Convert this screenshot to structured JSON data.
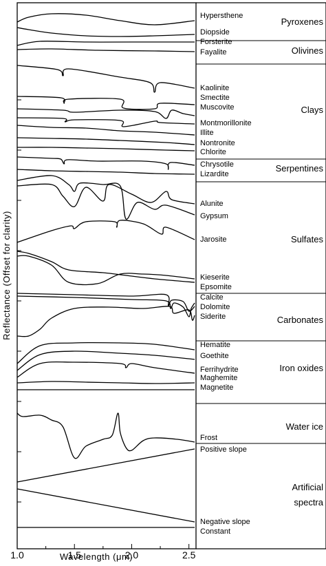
{
  "chart_data": {
    "type": "line",
    "title": "",
    "xlabel": "Wavelength (μm)",
    "ylabel": "Reflectance (Offset for clarity)",
    "xlim": [
      1.0,
      2.55
    ],
    "xticks": [
      "1.0",
      "1.5",
      "2.0",
      "2.5"
    ],
    "grid": false,
    "legend": "none",
    "groups": [
      {
        "name": "Pyroxenes",
        "minerals": [
          "Hypersthene",
          "Diopside"
        ]
      },
      {
        "name": "Olivines",
        "minerals": [
          "Forsterite",
          "Fayalite"
        ]
      },
      {
        "name": "Clays",
        "minerals": [
          "Kaolinite",
          "Smectite",
          "Muscovite",
          "Montmorillonite",
          "Illite",
          "Nontronite",
          "Chlorite"
        ]
      },
      {
        "name": "Serpentines",
        "minerals": [
          "Chrysotile",
          "Lizardite"
        ]
      },
      {
        "name": "Sulfates",
        "minerals": [
          "Alunite",
          "Gypsum",
          "Jarosite",
          "Kieserite",
          "Epsomite"
        ]
      },
      {
        "name": "Carbonates",
        "minerals": [
          "Calcite",
          "Dolomite",
          "Siderite"
        ]
      },
      {
        "name": "Iron oxides",
        "minerals": [
          "Hematite",
          "Goethite",
          "Ferrihydrite",
          "Maghemite",
          "Magnetite"
        ]
      },
      {
        "name": "Water ice",
        "minerals": [
          "Frost"
        ]
      },
      {
        "name": "Artificial spectra",
        "minerals": [
          "Positive slope",
          "Negative slope",
          "Constant"
        ]
      }
    ],
    "series": [
      {
        "name": "Hypersthene",
        "x": [
          1.0,
          1.1,
          1.3,
          1.6,
          1.9,
          2.2,
          2.55
        ],
        "y": [
          -32,
          -25,
          -20,
          -22,
          -30,
          -36,
          -30
        ]
      },
      {
        "name": "Diopside",
        "x": [
          1.0,
          1.1,
          1.3,
          1.6,
          1.9,
          2.2,
          2.55
        ],
        "y": [
          -40,
          -43,
          -48,
          -52,
          -53,
          -52,
          -50
        ]
      },
      {
        "name": "Forsterite",
        "x": [
          1.0,
          1.2,
          1.6,
          2.0,
          2.55
        ],
        "y": [
          -66,
          -60,
          -61,
          -61,
          -61
        ]
      },
      {
        "name": "Fayalite",
        "x": [
          1.0,
          1.3,
          1.7,
          2.2,
          2.55
        ],
        "y": [
          -72,
          -71,
          -73,
          -74,
          -75
        ]
      },
      {
        "name": "Kaolinite",
        "x": [
          1.0,
          1.35,
          1.4,
          1.45,
          1.9,
          2.16,
          2.2,
          2.25,
          2.55
        ],
        "y": [
          -95,
          -101,
          -110,
          -100,
          -112,
          -120,
          -134,
          -120,
          -128
        ]
      },
      {
        "name": "Smectite",
        "x": [
          1.0,
          1.38,
          1.41,
          1.45,
          1.9,
          1.93,
          2.2,
          2.25,
          2.55
        ],
        "y": [
          -140,
          -142,
          -150,
          -144,
          -144,
          -157,
          -158,
          -150,
          -152
        ]
      },
      {
        "name": "Muscovite",
        "x": [
          1.0,
          1.4,
          1.5,
          1.9,
          2.2,
          2.3,
          2.35,
          2.45,
          2.55
        ],
        "y": [
          -158,
          -160,
          -163,
          -160,
          -162,
          -172,
          -160,
          -165,
          -168
        ]
      },
      {
        "name": "Montmorillonite",
        "x": [
          1.0,
          1.4,
          1.42,
          1.5,
          1.9,
          1.93,
          2.2,
          2.25,
          2.55
        ],
        "y": [
          -171,
          -172,
          -177,
          -174,
          -175,
          -184,
          -176,
          -178,
          -180
        ]
      },
      {
        "name": "Illite",
        "x": [
          1.0,
          1.3,
          1.6,
          1.9,
          2.2,
          2.55
        ],
        "y": [
          -182,
          -185,
          -186,
          -190,
          -192,
          -196
        ]
      },
      {
        "name": "Nontronite",
        "x": [
          1.0,
          1.3,
          1.6,
          1.9,
          2.3,
          2.55
        ],
        "y": [
          -200,
          -201,
          -202,
          -204,
          -207,
          -210
        ]
      },
      {
        "name": "Chlorite",
        "x": [
          1.0,
          1.3,
          1.6,
          1.9,
          2.3,
          2.55
        ],
        "y": [
          -214,
          -214,
          -215,
          -216,
          -218,
          -219
        ]
      },
      {
        "name": "Chrysotile",
        "x": [
          1.0,
          1.3,
          1.38,
          1.41,
          1.44,
          1.7,
          2.1,
          2.3,
          2.32,
          2.34,
          2.55
        ],
        "y": [
          -228,
          -230,
          -231,
          -238,
          -232,
          -234,
          -234,
          -238,
          -246,
          -236,
          -240
        ]
      },
      {
        "name": "Lizardite",
        "x": [
          1.0,
          1.3,
          1.6,
          1.9,
          2.2,
          2.55
        ],
        "y": [
          -246,
          -248,
          -249,
          -250,
          -252,
          -253
        ]
      },
      {
        "name": "Alunite",
        "x": [
          1.0,
          1.3,
          1.4,
          1.5,
          1.6,
          1.75,
          1.8,
          2.0,
          2.17,
          2.3,
          2.35,
          2.55
        ],
        "y": [
          -270,
          -268,
          -285,
          -300,
          -272,
          -292,
          -268,
          -282,
          -294,
          -278,
          -290,
          -296
        ]
      },
      {
        "name": "Gypsum",
        "x": [
          1.0,
          1.3,
          1.45,
          1.5,
          1.55,
          1.75,
          1.9,
          1.95,
          2.05,
          2.2,
          2.3,
          2.55
        ],
        "y": [
          -262,
          -255,
          -268,
          -278,
          -266,
          -268,
          -270,
          -318,
          -294,
          -304,
          -298,
          -312
        ]
      },
      {
        "name": "Jarosite",
        "x": [
          1.0,
          1.3,
          1.47,
          1.5,
          1.6,
          1.85,
          1.87,
          1.9,
          2.1,
          2.26,
          2.3,
          2.55
        ],
        "y": [
          -352,
          -335,
          -328,
          -332,
          -322,
          -322,
          -330,
          -320,
          -325,
          -340,
          -330,
          -348
        ]
      },
      {
        "name": "Kieserite",
        "x": [
          1.0,
          1.1,
          1.3,
          1.45,
          1.7,
          1.9,
          2.1,
          2.3,
          2.55
        ],
        "y": [
          -372,
          -372,
          -385,
          -410,
          -412,
          -398,
          -398,
          -400,
          -405
        ]
      },
      {
        "name": "Epsomite",
        "x": [
          1.0,
          1.1,
          1.3,
          1.45,
          1.75,
          1.95,
          2.2,
          2.55
        ],
        "y": [
          -365,
          -368,
          -380,
          -392,
          -396,
          -400,
          -405,
          -410
        ]
      },
      {
        "name": "Calcite",
        "x": [
          1.0,
          1.5,
          2.0,
          2.3,
          2.34,
          2.37,
          2.45,
          2.5,
          2.52,
          2.55
        ],
        "y": [
          -430,
          -432,
          -435,
          -437,
          -448,
          -440,
          -446,
          -460,
          -448,
          -440
        ]
      },
      {
        "name": "Dolomite",
        "x": [
          1.0,
          1.5,
          2.0,
          2.3,
          2.32,
          2.35,
          2.45,
          2.5,
          2.55
        ],
        "y": [
          -426,
          -428,
          -430,
          -428,
          -444,
          -436,
          -438,
          -452,
          -445
        ]
      },
      {
        "name": "Siderite",
        "x": [
          1.0,
          1.1,
          1.2,
          1.3,
          1.5,
          1.8,
          2.1,
          2.33,
          2.37,
          2.5,
          2.53,
          2.55
        ],
        "y": [
          -488,
          -488,
          -478,
          -462,
          -448,
          -446,
          -448,
          -445,
          -455,
          -450,
          -465,
          -458
        ]
      },
      {
        "name": "Hematite",
        "x": [
          1.0,
          1.2,
          1.5,
          1.9,
          2.2,
          2.55
        ],
        "y": [
          -528,
          -502,
          -498,
          -498,
          -500,
          -508
        ]
      },
      {
        "name": "Goethite",
        "x": [
          1.0,
          1.2,
          1.5,
          1.9,
          2.2,
          2.55
        ],
        "y": [
          -538,
          -515,
          -510,
          -513,
          -516,
          -522
        ]
      },
      {
        "name": "Ferrihydrite",
        "x": [
          1.0,
          1.2,
          1.5,
          1.9,
          1.95,
          2.0,
          2.2,
          2.55
        ],
        "y": [
          -548,
          -528,
          -526,
          -528,
          -534,
          -528,
          -534,
          -542
        ]
      },
      {
        "name": "Maghemite",
        "x": [
          1.0,
          1.3,
          1.6,
          1.9,
          2.2,
          2.55
        ],
        "y": [
          -556,
          -554,
          -555,
          -556,
          -557,
          -556
        ]
      },
      {
        "name": "Magnetite",
        "x": [
          1.0,
          1.3,
          1.6,
          1.9,
          2.2,
          2.55
        ],
        "y": [
          -566,
          -566,
          -566,
          -566,
          -566,
          -566
        ]
      },
      {
        "name": "Frost",
        "x": [
          1.0,
          1.05,
          1.2,
          1.3,
          1.4,
          1.5,
          1.6,
          1.75,
          1.83,
          1.88,
          1.9,
          1.95,
          2.0,
          2.1,
          2.2,
          2.4,
          2.55
        ],
        "y": [
          -600,
          -605,
          -603,
          -610,
          -620,
          -665,
          -648,
          -638,
          -632,
          -600,
          -628,
          -650,
          -654,
          -640,
          -636,
          -638,
          -642
        ]
      },
      {
        "name": "Positive slope",
        "x": [
          1.0,
          2.55
        ],
        "y": [
          -700,
          -652
        ]
      },
      {
        "name": "Negative slope",
        "x": [
          1.0,
          2.55
        ],
        "y": [
          -710,
          -758
        ]
      },
      {
        "name": "Constant",
        "x": [
          1.0,
          2.55
        ],
        "y": [
          -766,
          -766
        ]
      }
    ]
  }
}
